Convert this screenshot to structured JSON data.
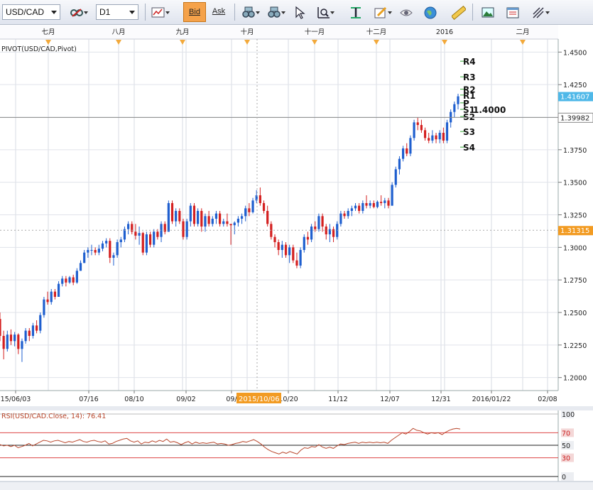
{
  "toolbar": {
    "symbol": "USD/CAD",
    "timeframe": "D1",
    "bid_label": "Bid",
    "ask_label": "Ask",
    "icons": [
      "bar-chart-icon",
      "binoculars-icon",
      "binoculars-icon",
      "cursor-icon",
      "zoom-icon",
      "text-tool-icon",
      "edit-icon",
      "eye-icon",
      "globe-icon",
      "ruler-icon",
      "picture-icon",
      "window-icon",
      "draw-lines-icon"
    ]
  },
  "chart": {
    "indicator_label": "PIVOT(USD/CAD,Pivot)",
    "months": [
      "七月",
      "八月",
      "九月",
      "十月",
      "十一月",
      "十二月",
      "2016",
      "二月"
    ],
    "dates": [
      "15/06/03",
      "07/16",
      "08/10",
      "09/02",
      "09/",
      "09/21",
      "10/20",
      "11/12",
      "12/07",
      "12/31",
      "2016/01/22",
      "02/08"
    ],
    "highlight_date": "2015/10/06",
    "price_ticks": [
      "1.4500",
      "1.4250",
      "1.4000",
      "1.3750",
      "1.3500",
      "1.3250",
      "1.3000",
      "1.2750",
      "1.2500",
      "1.2250",
      "1.2000"
    ],
    "current_price": "1.41607",
    "line_price": "1.39982",
    "cursor_price": "1.31315",
    "pivot_labels": [
      "R4",
      "R3",
      "R2",
      "R1",
      "P",
      "S1",
      "S2",
      "S3",
      "S4"
    ],
    "pivot_value_text": "1.4000",
    "colors": {
      "up": "#1f5fcf",
      "down": "#d42020",
      "current_bg": "#4fb8e8",
      "cursor_bg": "#f29b22",
      "rsi_line": "#b8452a",
      "rsi_band": "#d44"
    }
  },
  "rsi": {
    "label": "RSI(USD/CAD.Close, 14): 76.41",
    "ticks": [
      "100",
      "70",
      "50",
      "30",
      "0"
    ]
  },
  "chart_data": {
    "type": "candlestick",
    "symbol": "USD/CAD",
    "timeframe": "D1",
    "ylim": [
      1.19,
      1.46
    ],
    "candles": [
      {
        "d": 1.23,
        "o": 1.245,
        "h": 1.25,
        "l": 1.228,
        "c": 1.232
      },
      {
        "d": 1.215,
        "o": 1.232,
        "h": 1.236,
        "l": 1.214,
        "c": 1.222
      },
      {
        "d": 1.22,
        "o": 1.222,
        "h": 1.236,
        "l": 1.22,
        "c": 1.233
      },
      {
        "d": 1.225,
        "o": 1.233,
        "h": 1.237,
        "l": 1.225,
        "c": 1.228
      },
      {
        "d": 1.224,
        "o": 1.228,
        "h": 1.235,
        "l": 1.224,
        "c": 1.233
      },
      {
        "d": 1.224,
        "o": 1.233,
        "h": 1.234,
        "l": 1.218,
        "c": 1.222
      },
      {
        "d": 1.212,
        "o": 1.222,
        "h": 1.23,
        "l": 1.212,
        "c": 1.228
      },
      {
        "d": 1.226,
        "o": 1.228,
        "h": 1.238,
        "l": 1.226,
        "c": 1.236
      },
      {
        "d": 1.232,
        "o": 1.236,
        "h": 1.238,
        "l": 1.228,
        "c": 1.232
      },
      {
        "d": 1.232,
        "o": 1.232,
        "h": 1.242,
        "l": 1.23,
        "c": 1.24
      },
      {
        "d": 1.236,
        "o": 1.24,
        "h": 1.244,
        "l": 1.234,
        "c": 1.236
      },
      {
        "d": 1.234,
        "o": 1.236,
        "h": 1.25,
        "l": 1.234,
        "c": 1.248
      },
      {
        "d": 1.246,
        "o": 1.248,
        "h": 1.262,
        "l": 1.246,
        "c": 1.26
      },
      {
        "d": 1.258,
        "o": 1.26,
        "h": 1.266,
        "l": 1.256,
        "c": 1.258
      },
      {
        "d": 1.256,
        "o": 1.258,
        "h": 1.268,
        "l": 1.256,
        "c": 1.266
      },
      {
        "d": 1.262,
        "o": 1.266,
        "h": 1.268,
        "l": 1.26,
        "c": 1.262
      },
      {
        "d": 1.262,
        "o": 1.262,
        "h": 1.274,
        "l": 1.262,
        "c": 1.272
      },
      {
        "d": 1.27,
        "o": 1.272,
        "h": 1.278,
        "l": 1.27,
        "c": 1.276
      },
      {
        "d": 1.272,
        "o": 1.276,
        "h": 1.278,
        "l": 1.27,
        "c": 1.273
      },
      {
        "d": 1.272,
        "o": 1.273,
        "h": 1.278,
        "l": 1.272,
        "c": 1.277
      },
      {
        "d": 1.272,
        "o": 1.277,
        "h": 1.279,
        "l": 1.271,
        "c": 1.273
      },
      {
        "d": 1.272,
        "o": 1.273,
        "h": 1.284,
        "l": 1.272,
        "c": 1.282
      },
      {
        "d": 1.282,
        "o": 1.282,
        "h": 1.29,
        "l": 1.282,
        "c": 1.288
      },
      {
        "d": 1.288,
        "o": 1.288,
        "h": 1.298,
        "l": 1.288,
        "c": 1.296
      },
      {
        "d": 1.294,
        "o": 1.296,
        "h": 1.3,
        "l": 1.292,
        "c": 1.298
      },
      {
        "d": 1.294,
        "o": 1.298,
        "h": 1.302,
        "l": 1.294,
        "c": 1.298
      },
      {
        "d": 1.296,
        "o": 1.298,
        "h": 1.3,
        "l": 1.294,
        "c": 1.296
      },
      {
        "d": 1.294,
        "o": 1.296,
        "h": 1.302,
        "l": 1.294,
        "c": 1.299
      },
      {
        "d": 1.297,
        "o": 1.299,
        "h": 1.305,
        "l": 1.297,
        "c": 1.303
      },
      {
        "d": 1.3,
        "o": 1.303,
        "h": 1.307,
        "l": 1.3,
        "c": 1.305
      },
      {
        "d": 1.302,
        "o": 1.305,
        "h": 1.307,
        "l": 1.288,
        "c": 1.292
      },
      {
        "d": 1.286,
        "o": 1.292,
        "h": 1.296,
        "l": 1.286,
        "c": 1.294
      },
      {
        "d": 1.292,
        "o": 1.294,
        "h": 1.306,
        "l": 1.292,
        "c": 1.304
      },
      {
        "d": 1.3,
        "o": 1.304,
        "h": 1.308,
        "l": 1.3,
        "c": 1.306
      },
      {
        "d": 1.304,
        "o": 1.306,
        "h": 1.316,
        "l": 1.304,
        "c": 1.314
      },
      {
        "d": 1.31,
        "o": 1.314,
        "h": 1.32,
        "l": 1.31,
        "c": 1.318
      },
      {
        "d": 1.31,
        "o": 1.318,
        "h": 1.32,
        "l": 1.31,
        "c": 1.312
      },
      {
        "d": 1.306,
        "o": 1.312,
        "h": 1.318,
        "l": 1.306,
        "c": 1.309
      },
      {
        "d": 1.302,
        "o": 1.309,
        "h": 1.316,
        "l": 1.302,
        "c": 1.311
      },
      {
        "d": 1.294,
        "o": 1.311,
        "h": 1.312,
        "l": 1.294,
        "c": 1.296
      },
      {
        "d": 1.294,
        "o": 1.296,
        "h": 1.312,
        "l": 1.294,
        "c": 1.31
      },
      {
        "d": 1.3,
        "o": 1.31,
        "h": 1.312,
        "l": 1.3,
        "c": 1.302
      },
      {
        "d": 1.3,
        "o": 1.302,
        "h": 1.314,
        "l": 1.3,
        "c": 1.312
      },
      {
        "d": 1.306,
        "o": 1.312,
        "h": 1.314,
        "l": 1.306,
        "c": 1.308
      },
      {
        "d": 1.304,
        "o": 1.308,
        "h": 1.32,
        "l": 1.304,
        "c": 1.318
      },
      {
        "d": 1.31,
        "o": 1.318,
        "h": 1.32,
        "l": 1.31,
        "c": 1.312
      },
      {
        "d": 1.312,
        "o": 1.312,
        "h": 1.336,
        "l": 1.312,
        "c": 1.334
      },
      {
        "d": 1.318,
        "o": 1.334,
        "h": 1.336,
        "l": 1.318,
        "c": 1.32
      },
      {
        "d": 1.316,
        "o": 1.32,
        "h": 1.33,
        "l": 1.316,
        "c": 1.328
      },
      {
        "d": 1.318,
        "o": 1.328,
        "h": 1.33,
        "l": 1.318,
        "c": 1.32
      },
      {
        "d": 1.306,
        "o": 1.32,
        "h": 1.322,
        "l": 1.306,
        "c": 1.308
      },
      {
        "d": 1.306,
        "o": 1.308,
        "h": 1.322,
        "l": 1.306,
        "c": 1.32
      },
      {
        "d": 1.316,
        "o": 1.32,
        "h": 1.334,
        "l": 1.316,
        "c": 1.332
      },
      {
        "d": 1.316,
        "o": 1.332,
        "h": 1.334,
        "l": 1.316,
        "c": 1.318
      },
      {
        "d": 1.316,
        "o": 1.318,
        "h": 1.33,
        "l": 1.316,
        "c": 1.328
      },
      {
        "d": 1.312,
        "o": 1.328,
        "h": 1.33,
        "l": 1.312,
        "c": 1.316
      },
      {
        "d": 1.312,
        "o": 1.316,
        "h": 1.326,
        "l": 1.312,
        "c": 1.324
      },
      {
        "d": 1.316,
        "o": 1.324,
        "h": 1.328,
        "l": 1.316,
        "c": 1.318
      },
      {
        "d": 1.316,
        "o": 1.318,
        "h": 1.324,
        "l": 1.316,
        "c": 1.322
      },
      {
        "d": 1.318,
        "o": 1.322,
        "h": 1.328,
        "l": 1.318,
        "c": 1.326
      },
      {
        "d": 1.316,
        "o": 1.326,
        "h": 1.328,
        "l": 1.316,
        "c": 1.318
      },
      {
        "d": 1.316,
        "o": 1.318,
        "h": 1.322,
        "l": 1.316,
        "c": 1.32
      },
      {
        "d": 1.316,
        "o": 1.32,
        "h": 1.326,
        "l": 1.316,
        "c": 1.318
      },
      {
        "d": 1.302,
        "o": 1.318,
        "h": 1.318,
        "l": 1.302,
        "c": 1.317
      },
      {
        "d": 1.31,
        "o": 1.317,
        "h": 1.32,
        "l": 1.31,
        "c": 1.319
      },
      {
        "d": 1.316,
        "o": 1.319,
        "h": 1.324,
        "l": 1.316,
        "c": 1.322
      },
      {
        "d": 1.318,
        "o": 1.322,
        "h": 1.326,
        "l": 1.318,
        "c": 1.324
      },
      {
        "d": 1.32,
        "o": 1.324,
        "h": 1.332,
        "l": 1.32,
        "c": 1.33
      },
      {
        "d": 1.324,
        "o": 1.33,
        "h": 1.334,
        "l": 1.324,
        "c": 1.327
      },
      {
        "d": 1.326,
        "o": 1.327,
        "h": 1.338,
        "l": 1.326,
        "c": 1.336
      },
      {
        "d": 1.334,
        "o": 1.336,
        "h": 1.344,
        "l": 1.334,
        "c": 1.34
      },
      {
        "d": 1.332,
        "o": 1.34,
        "h": 1.346,
        "l": 1.332,
        "c": 1.334
      },
      {
        "d": 1.326,
        "o": 1.334,
        "h": 1.336,
        "l": 1.326,
        "c": 1.328
      },
      {
        "d": 1.316,
        "o": 1.328,
        "h": 1.332,
        "l": 1.316,
        "c": 1.318
      },
      {
        "d": 1.306,
        "o": 1.318,
        "h": 1.32,
        "l": 1.306,
        "c": 1.308
      },
      {
        "d": 1.3,
        "o": 1.308,
        "h": 1.31,
        "l": 1.3,
        "c": 1.304
      },
      {
        "d": 1.294,
        "o": 1.304,
        "h": 1.306,
        "l": 1.294,
        "c": 1.298
      },
      {
        "d": 1.292,
        "o": 1.298,
        "h": 1.305,
        "l": 1.292,
        "c": 1.302
      },
      {
        "d": 1.292,
        "o": 1.302,
        "h": 1.304,
        "l": 1.292,
        "c": 1.294
      },
      {
        "d": 1.288,
        "o": 1.294,
        "h": 1.302,
        "l": 1.288,
        "c": 1.3
      },
      {
        "d": 1.288,
        "o": 1.3,
        "h": 1.302,
        "l": 1.288,
        "c": 1.29
      },
      {
        "d": 1.284,
        "o": 1.29,
        "h": 1.296,
        "l": 1.284,
        "c": 1.286
      },
      {
        "d": 1.284,
        "o": 1.286,
        "h": 1.3,
        "l": 1.284,
        "c": 1.298
      },
      {
        "d": 1.296,
        "o": 1.298,
        "h": 1.31,
        "l": 1.296,
        "c": 1.308
      },
      {
        "d": 1.302,
        "o": 1.308,
        "h": 1.312,
        "l": 1.302,
        "c": 1.306
      },
      {
        "d": 1.304,
        "o": 1.306,
        "h": 1.318,
        "l": 1.304,
        "c": 1.316
      },
      {
        "d": 1.312,
        "o": 1.316,
        "h": 1.32,
        "l": 1.312,
        "c": 1.314
      },
      {
        "d": 1.312,
        "o": 1.314,
        "h": 1.326,
        "l": 1.312,
        "c": 1.324
      },
      {
        "d": 1.312,
        "o": 1.324,
        "h": 1.326,
        "l": 1.312,
        "c": 1.316
      },
      {
        "d": 1.306,
        "o": 1.316,
        "h": 1.318,
        "l": 1.306,
        "c": 1.31
      },
      {
        "d": 1.304,
        "o": 1.31,
        "h": 1.318,
        "l": 1.304,
        "c": 1.314
      },
      {
        "d": 1.304,
        "o": 1.314,
        "h": 1.316,
        "l": 1.304,
        "c": 1.308
      },
      {
        "d": 1.306,
        "o": 1.308,
        "h": 1.32,
        "l": 1.306,
        "c": 1.318
      },
      {
        "d": 1.316,
        "o": 1.318,
        "h": 1.328,
        "l": 1.316,
        "c": 1.326
      },
      {
        "d": 1.322,
        "o": 1.326,
        "h": 1.328,
        "l": 1.322,
        "c": 1.324
      },
      {
        "d": 1.322,
        "o": 1.324,
        "h": 1.33,
        "l": 1.322,
        "c": 1.328
      },
      {
        "d": 1.324,
        "o": 1.328,
        "h": 1.332,
        "l": 1.324,
        "c": 1.33
      },
      {
        "d": 1.328,
        "o": 1.33,
        "h": 1.334,
        "l": 1.328,
        "c": 1.332
      },
      {
        "d": 1.326,
        "o": 1.332,
        "h": 1.334,
        "l": 1.326,
        "c": 1.328
      },
      {
        "d": 1.326,
        "o": 1.328,
        "h": 1.336,
        "l": 1.326,
        "c": 1.334
      },
      {
        "d": 1.33,
        "o": 1.334,
        "h": 1.34,
        "l": 1.33,
        "c": 1.332
      },
      {
        "d": 1.33,
        "o": 1.332,
        "h": 1.336,
        "l": 1.33,
        "c": 1.334
      },
      {
        "d": 1.33,
        "o": 1.334,
        "h": 1.336,
        "l": 1.33,
        "c": 1.331
      },
      {
        "d": 1.33,
        "o": 1.331,
        "h": 1.336,
        "l": 1.33,
        "c": 1.335
      },
      {
        "d": 1.332,
        "o": 1.335,
        "h": 1.34,
        "l": 1.332,
        "c": 1.334
      },
      {
        "d": 1.33,
        "o": 1.334,
        "h": 1.338,
        "l": 1.33,
        "c": 1.336
      },
      {
        "d": 1.33,
        "o": 1.336,
        "h": 1.338,
        "l": 1.33,
        "c": 1.332
      },
      {
        "d": 1.332,
        "o": 1.332,
        "h": 1.35,
        "l": 1.332,
        "c": 1.348
      },
      {
        "d": 1.346,
        "o": 1.348,
        "h": 1.362,
        "l": 1.346,
        "c": 1.36
      },
      {
        "d": 1.356,
        "o": 1.36,
        "h": 1.37,
        "l": 1.356,
        "c": 1.368
      },
      {
        "d": 1.366,
        "o": 1.368,
        "h": 1.378,
        "l": 1.366,
        "c": 1.376
      },
      {
        "d": 1.37,
        "o": 1.376,
        "h": 1.38,
        "l": 1.37,
        "c": 1.372
      },
      {
        "d": 1.37,
        "o": 1.372,
        "h": 1.386,
        "l": 1.37,
        "c": 1.384
      },
      {
        "d": 1.382,
        "o": 1.384,
        "h": 1.398,
        "l": 1.382,
        "c": 1.396
      },
      {
        "d": 1.39,
        "o": 1.396,
        "h": 1.4,
        "l": 1.39,
        "c": 1.394
      },
      {
        "d": 1.388,
        "o": 1.394,
        "h": 1.398,
        "l": 1.388,
        "c": 1.39
      },
      {
        "d": 1.382,
        "o": 1.39,
        "h": 1.392,
        "l": 1.382,
        "c": 1.384
      },
      {
        "d": 1.38,
        "o": 1.384,
        "h": 1.388,
        "l": 1.38,
        "c": 1.382
      },
      {
        "d": 1.38,
        "o": 1.382,
        "h": 1.39,
        "l": 1.38,
        "c": 1.386
      },
      {
        "d": 1.38,
        "o": 1.386,
        "h": 1.388,
        "l": 1.38,
        "c": 1.383
      },
      {
        "d": 1.38,
        "o": 1.383,
        "h": 1.39,
        "l": 1.38,
        "c": 1.388
      },
      {
        "d": 1.38,
        "o": 1.388,
        "h": 1.392,
        "l": 1.38,
        "c": 1.382
      },
      {
        "d": 1.38,
        "o": 1.382,
        "h": 1.398,
        "l": 1.38,
        "c": 1.396
      },
      {
        "d": 1.392,
        "o": 1.396,
        "h": 1.406,
        "l": 1.392,
        "c": 1.404
      },
      {
        "d": 1.4,
        "o": 1.404,
        "h": 1.412,
        "l": 1.4,
        "c": 1.41
      },
      {
        "d": 1.406,
        "o": 1.41,
        "h": 1.418,
        "l": 1.406,
        "c": 1.416
      }
    ],
    "pivots": {
      "R4": 1.443,
      "R3": 1.431,
      "R2": 1.4215,
      "R1": 1.417,
      "P": 1.411,
      "S1": 1.406,
      "S2": 1.4005,
      "S3": 1.389,
      "S4": 1.377
    },
    "rsi": {
      "name": "RSI(USD/CAD.Close, 14)",
      "last": 76.41,
      "levels": [
        70,
        50,
        30
      ],
      "ylim": [
        0,
        100
      ],
      "values": [
        51,
        49,
        50,
        48,
        50,
        46,
        48,
        50,
        53,
        49,
        52,
        55,
        58,
        57,
        55,
        57,
        58,
        56,
        54,
        56,
        55,
        57,
        59,
        56,
        55,
        57,
        58,
        56,
        55,
        57,
        52,
        53,
        56,
        58,
        60,
        61,
        57,
        55,
        57,
        52,
        55,
        54,
        57,
        55,
        58,
        56,
        60,
        55,
        56,
        54,
        51,
        54,
        56,
        52,
        55,
        53,
        54,
        53,
        54,
        55,
        52,
        53,
        52,
        50,
        51,
        53,
        54,
        56,
        55,
        57,
        59,
        56,
        52,
        47,
        43,
        40,
        38,
        36,
        39,
        37,
        40,
        38,
        36,
        42,
        46,
        45,
        48,
        47,
        51,
        47,
        45,
        47,
        45,
        49,
        52,
        51,
        53,
        54,
        55,
        53,
        55,
        54,
        55,
        54,
        55,
        54,
        55,
        53,
        58,
        62,
        66,
        70,
        68,
        72,
        77,
        74,
        73,
        70,
        68,
        70,
        69,
        70,
        67,
        71,
        74,
        76,
        77,
        76
      ]
    }
  }
}
